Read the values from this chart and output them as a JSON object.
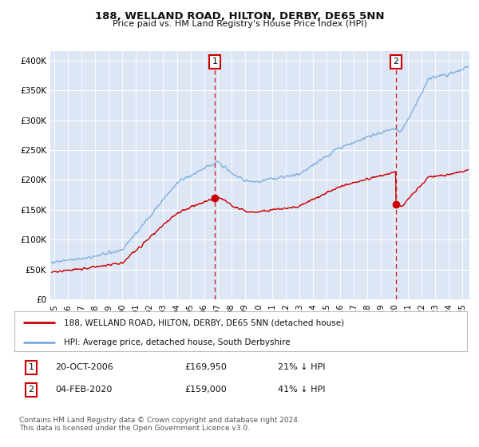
{
  "title": "188, WELLAND ROAD, HILTON, DERBY, DE65 5NN",
  "subtitle": "Price paid vs. HM Land Registry's House Price Index (HPI)",
  "ylabel_ticks": [
    "£0",
    "£50K",
    "£100K",
    "£150K",
    "£200K",
    "£250K",
    "£300K",
    "£350K",
    "£400K"
  ],
  "ytick_values": [
    0,
    50000,
    100000,
    150000,
    200000,
    250000,
    300000,
    350000,
    400000
  ],
  "ylim": [
    0,
    415000
  ],
  "xlim_start": 1994.7,
  "xlim_end": 2025.5,
  "fig_bg_color": "#ffffff",
  "plot_bg_color": "#dce6f5",
  "grid_color": "#ffffff",
  "red_line_color": "#cc0000",
  "blue_line_color": "#7aaadd",
  "vline_color": "#cc0000",
  "marker1_x": 2006.8,
  "marker2_x": 2020.08,
  "marker1_label": "1",
  "marker2_label": "2",
  "marker1_y_price": 169950,
  "marker2_y_price": 159000,
  "legend_label_red": "188, WELLAND ROAD, HILTON, DERBY, DE65 5NN (detached house)",
  "legend_label_blue": "HPI: Average price, detached house, South Derbyshire",
  "annot1_num": "1",
  "annot1_date": "20-OCT-2006",
  "annot1_price": "£169,950",
  "annot1_hpi": "21% ↓ HPI",
  "annot2_num": "2",
  "annot2_date": "04-FEB-2020",
  "annot2_price": "£159,000",
  "annot2_hpi": "41% ↓ HPI",
  "footer": "Contains HM Land Registry data © Crown copyright and database right 2024.\nThis data is licensed under the Open Government Licence v3.0.",
  "xtick_years": [
    1995,
    1996,
    1997,
    1998,
    1999,
    2000,
    2001,
    2002,
    2003,
    2004,
    2005,
    2006,
    2007,
    2008,
    2009,
    2010,
    2011,
    2012,
    2013,
    2014,
    2015,
    2016,
    2017,
    2018,
    2019,
    2020,
    2021,
    2022,
    2023,
    2024,
    2025
  ]
}
